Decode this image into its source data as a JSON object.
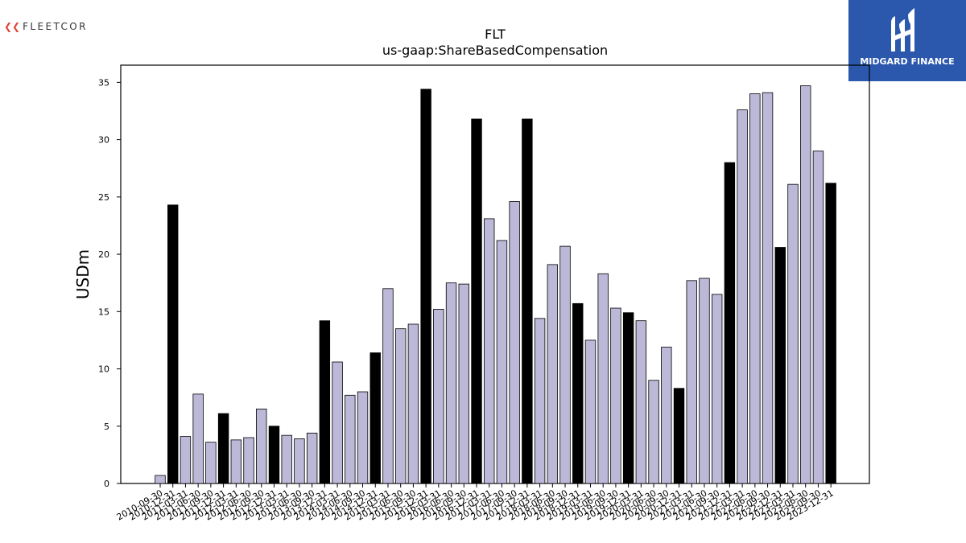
{
  "brand_left": {
    "name": "FLEETCOR",
    "icon": "fleetcor-swoosh-icon"
  },
  "brand_right": {
    "name": "MIDGARD FINANCE",
    "icon": "midgard-logo-icon",
    "color": "#2b58ad"
  },
  "chart_data": {
    "type": "bar",
    "title": "FLT",
    "subtitle": "us-gaap:ShareBasedCompensation",
    "xlabel": "",
    "ylabel": "USDm",
    "ylim": [
      0,
      36.5
    ],
    "yticks": [
      0,
      5,
      10,
      15,
      20,
      25,
      30,
      35
    ],
    "grid": false,
    "colors": {
      "quarter": "#bcb8d8",
      "annual": "#000000",
      "edge": "#000000"
    },
    "categories": [
      "2010-09-30",
      "2010-12-31",
      "2011-03-31",
      "2011-06-30",
      "2011-09-30",
      "2011-12-31",
      "2012-03-31",
      "2012-06-30",
      "2012-09-30",
      "2012-12-31",
      "2013-03-31",
      "2013-06-30",
      "2013-09-30",
      "2013-12-31",
      "2014-03-31",
      "2014-06-30",
      "2014-09-30",
      "2014-12-31",
      "2015-03-31",
      "2015-06-30",
      "2015-09-30",
      "2015-12-31",
      "2016-03-31",
      "2016-06-30",
      "2016-09-30",
      "2016-12-31",
      "2017-03-31",
      "2017-06-30",
      "2017-09-30",
      "2017-12-31",
      "2018-03-31",
      "2018-06-30",
      "2018-09-30",
      "2018-12-31",
      "2019-03-31",
      "2019-06-30",
      "2019-09-30",
      "2019-12-31",
      "2020-03-31",
      "2020-06-30",
      "2020-09-30",
      "2020-12-31",
      "2021-03-31",
      "2021-06-30",
      "2021-09-30",
      "2021-12-31",
      "2022-03-31",
      "2022-06-30",
      "2022-09-30",
      "2022-12-31",
      "2023-03-31",
      "2023-06-30",
      "2023-09-30",
      "2023-12-31"
    ],
    "values": [
      0.7,
      24.3,
      4.1,
      7.8,
      3.6,
      6.1,
      3.8,
      4.0,
      6.5,
      5.0,
      4.2,
      3.9,
      4.4,
      14.2,
      10.6,
      7.7,
      8.0,
      11.4,
      17.0,
      13.5,
      13.9,
      34.4,
      15.2,
      17.5,
      17.4,
      31.8,
      23.1,
      21.2,
      24.6,
      31.8,
      14.4,
      19.1,
      20.7,
      15.7,
      12.5,
      18.3,
      15.3,
      14.9,
      14.2,
      9.0,
      11.9,
      8.3,
      17.7,
      17.9,
      16.5,
      28.0,
      32.6,
      34.0,
      34.1,
      20.6,
      26.1,
      34.7,
      29.0,
      26.2
    ],
    "annual": [
      false,
      true,
      false,
      false,
      false,
      true,
      false,
      false,
      false,
      true,
      false,
      false,
      false,
      true,
      false,
      false,
      false,
      true,
      false,
      false,
      false,
      true,
      false,
      false,
      false,
      true,
      false,
      false,
      false,
      true,
      false,
      false,
      false,
      true,
      false,
      false,
      false,
      true,
      false,
      false,
      false,
      true,
      false,
      false,
      false,
      true,
      false,
      false,
      false,
      true,
      false,
      false,
      false,
      true
    ]
  }
}
